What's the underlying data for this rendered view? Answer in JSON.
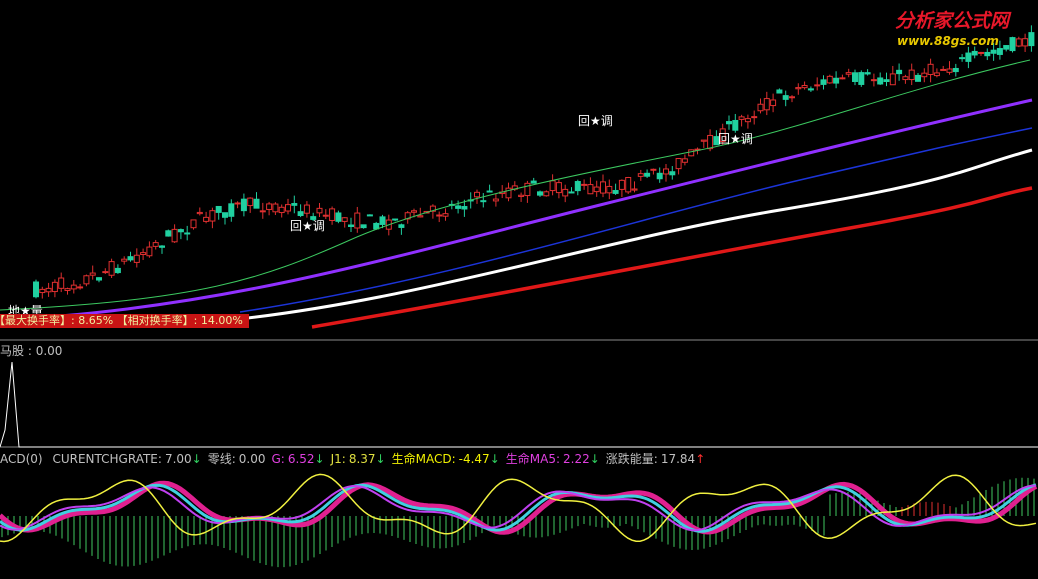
{
  "logo": {
    "name": "分析家公式网",
    "url": "www.88gs.com"
  },
  "main_panel": {
    "annotations": [
      "地★量",
      "回★调",
      "回★调",
      "回★调"
    ],
    "turnover": {
      "max_label": "【最大换手率】:",
      "max_value": "8.65%",
      "rel_label": "【相对换手率】:",
      "rel_value": "14.00%"
    }
  },
  "signal_panel": {
    "label": "马股 :",
    "value": "0.00"
  },
  "indicator_panel": {
    "title": "ACD(0)",
    "items": [
      {
        "name": "CURENTCHGRATE:",
        "value": "7.00",
        "arrow": "↓"
      },
      {
        "name": "零线:",
        "value": "0.00"
      },
      {
        "name": "G:",
        "value": "6.52",
        "arrow": "↓"
      },
      {
        "name": "J1:",
        "value": "8.37",
        "arrow": "↓"
      },
      {
        "name": "生命MACD:",
        "value": "-4.47",
        "arrow": "↓"
      },
      {
        "name": "生命MA5:",
        "value": "2.22",
        "arrow": "↓"
      },
      {
        "name": "涨跌能量:",
        "value": "17.84",
        "arrow": "↑"
      }
    ]
  }
}
